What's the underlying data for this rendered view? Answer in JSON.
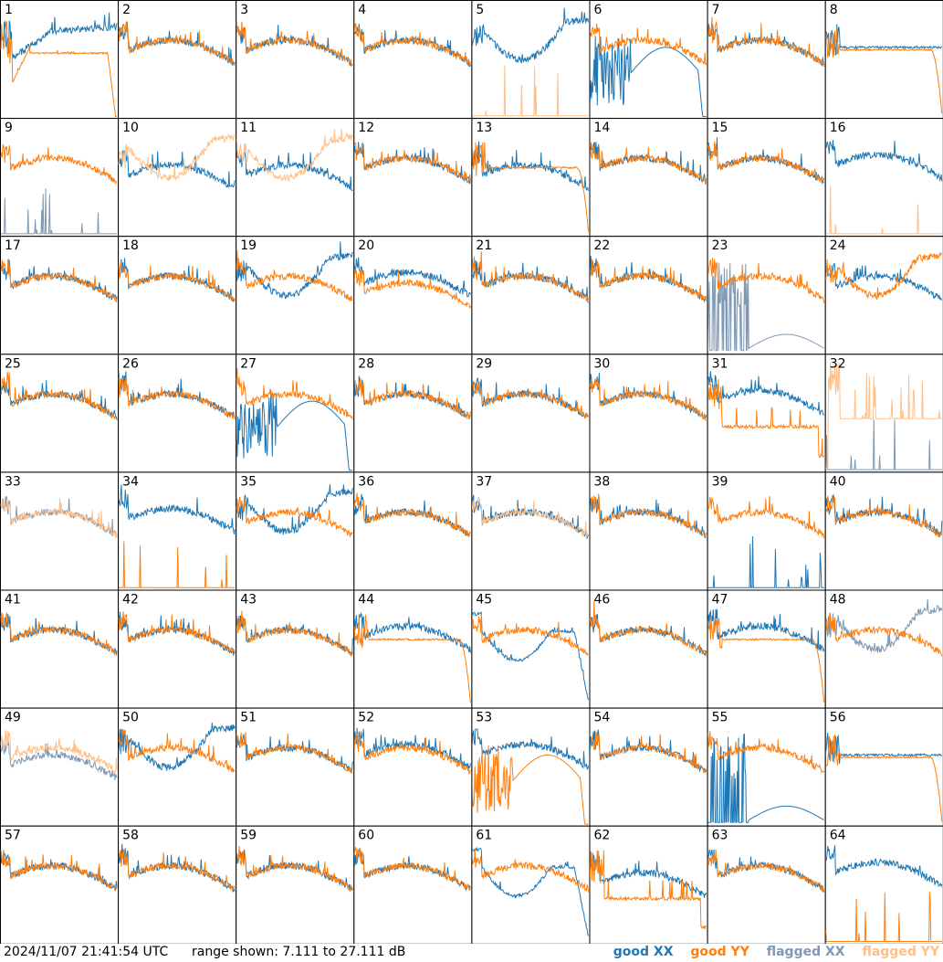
{
  "footer": {
    "timestamp": "2024/11/07 21:41:54 UTC",
    "range": "range shown: 7.111 to 27.111 dB"
  },
  "legend": {
    "good_xx": "good XX",
    "good_yy": "good YY",
    "flagged_xx": "flagged XX",
    "flagged_yy": "flagged YY"
  },
  "colors": {
    "good_xx": "#1f77b4",
    "good_yy": "#ff7f0e",
    "flagged_xx": "#7f99b4",
    "flagged_yy": "#ffbf87",
    "grid": "#000000"
  },
  "chart_data": {
    "type": "line",
    "layout": "8x8 grid of spectra",
    "ylim": [
      7.111,
      27.111
    ],
    "yunit": "dB",
    "panels": [
      {
        "id": "1",
        "xx": "drop-dip",
        "yy": "drop-dip-fall",
        "xx_flag": false,
        "yy_flag": false
      },
      {
        "id": "2",
        "xx": "normal",
        "yy": "normal",
        "xx_flag": false,
        "yy_flag": false
      },
      {
        "id": "3",
        "xx": "normal",
        "yy": "normal",
        "xx_flag": false,
        "yy_flag": false
      },
      {
        "id": "4",
        "xx": "normal",
        "yy": "normal",
        "xx_flag": false,
        "yy_flag": false
      },
      {
        "id": "5",
        "xx": "dip",
        "yy": "spiky-zero",
        "xx_flag": false,
        "yy_flag": true
      },
      {
        "id": "6",
        "xx": "noisy-hump-fall",
        "yy": "normal",
        "xx_flag": false,
        "yy_flag": false
      },
      {
        "id": "7",
        "xx": "normal",
        "yy": "normal",
        "xx_flag": false,
        "yy_flag": false
      },
      {
        "id": "8",
        "xx": "flat",
        "yy": "flat-fall",
        "xx_flag": false,
        "yy_flag": false
      },
      {
        "id": "9",
        "xx": "spiky-zero",
        "yy": "normal",
        "xx_flag": true,
        "yy_flag": false
      },
      {
        "id": "10",
        "xx": "normal-low",
        "yy": "dip",
        "xx_flag": false,
        "yy_flag": true
      },
      {
        "id": "11",
        "xx": "normal-low",
        "yy": "dip",
        "xx_flag": false,
        "yy_flag": true
      },
      {
        "id": "12",
        "xx": "normal",
        "yy": "normal",
        "xx_flag": false,
        "yy_flag": false
      },
      {
        "id": "13",
        "xx": "normal-low",
        "yy": "flat-fall",
        "xx_flag": false,
        "yy_flag": false
      },
      {
        "id": "14",
        "xx": "normal",
        "yy": "normal",
        "xx_flag": false,
        "yy_flag": false
      },
      {
        "id": "15",
        "xx": "normal",
        "yy": "normal",
        "xx_flag": false,
        "yy_flag": false
      },
      {
        "id": "16",
        "xx": "normal-high",
        "yy": "spiky-zero",
        "xx_flag": false,
        "yy_flag": true
      },
      {
        "id": "17",
        "xx": "normal",
        "yy": "normal",
        "xx_flag": false,
        "yy_flag": false
      },
      {
        "id": "18",
        "xx": "normal",
        "yy": "normal",
        "xx_flag": false,
        "yy_flag": false
      },
      {
        "id": "19",
        "xx": "dip",
        "yy": "normal",
        "xx_flag": false,
        "yy_flag": false
      },
      {
        "id": "20",
        "xx": "normal-high",
        "yy": "normal-low",
        "xx_flag": false,
        "yy_flag": false
      },
      {
        "id": "21",
        "xx": "normal",
        "yy": "normal",
        "xx_flag": false,
        "yy_flag": false
      },
      {
        "id": "22",
        "xx": "normal",
        "yy": "normal",
        "xx_flag": false,
        "yy_flag": false
      },
      {
        "id": "23",
        "xx": "spiky-low-hump",
        "yy": "normal",
        "xx_flag": true,
        "yy_flag": false
      },
      {
        "id": "24",
        "xx": "normal",
        "yy": "dip",
        "xx_flag": false,
        "yy_flag": false
      },
      {
        "id": "25",
        "xx": "normal",
        "yy": "normal",
        "xx_flag": false,
        "yy_flag": false
      },
      {
        "id": "26",
        "xx": "normal",
        "yy": "normal",
        "xx_flag": false,
        "yy_flag": false
      },
      {
        "id": "27",
        "xx": "noisy-hump-fall",
        "yy": "normal",
        "xx_flag": false,
        "yy_flag": false
      },
      {
        "id": "28",
        "xx": "normal",
        "yy": "normal",
        "xx_flag": false,
        "yy_flag": false
      },
      {
        "id": "29",
        "xx": "normal",
        "yy": "normal",
        "xx_flag": false,
        "yy_flag": false
      },
      {
        "id": "30",
        "xx": "normal",
        "yy": "normal",
        "xx_flag": false,
        "yy_flag": false
      },
      {
        "id": "31",
        "xx": "normal-high",
        "yy": "flat-low",
        "xx_flag": false,
        "yy_flag": false
      },
      {
        "id": "32",
        "xx": "spiky-zero",
        "yy": "spiky-flagged",
        "xx_flag": true,
        "yy_flag": true
      },
      {
        "id": "33",
        "xx": "normal",
        "yy": "normal",
        "xx_flag": true,
        "yy_flag": true
      },
      {
        "id": "34",
        "xx": "normal-high",
        "yy": "spiky-zero",
        "xx_flag": false,
        "yy_flag": false
      },
      {
        "id": "35",
        "xx": "dip",
        "yy": "normal",
        "xx_flag": false,
        "yy_flag": false
      },
      {
        "id": "36",
        "xx": "normal",
        "yy": "normal",
        "xx_flag": false,
        "yy_flag": false
      },
      {
        "id": "37",
        "xx": "normal",
        "yy": "normal",
        "xx_flag": false,
        "yy_flag": true
      },
      {
        "id": "38",
        "xx": "normal",
        "yy": "normal",
        "xx_flag": false,
        "yy_flag": false
      },
      {
        "id": "39",
        "xx": "spiky-zero",
        "yy": "normal",
        "xx_flag": false,
        "yy_flag": false
      },
      {
        "id": "40",
        "xx": "normal",
        "yy": "normal",
        "xx_flag": false,
        "yy_flag": false
      },
      {
        "id": "41",
        "xx": "normal",
        "yy": "normal",
        "xx_flag": false,
        "yy_flag": false
      },
      {
        "id": "42",
        "xx": "normal",
        "yy": "normal",
        "xx_flag": false,
        "yy_flag": false
      },
      {
        "id": "43",
        "xx": "normal",
        "yy": "normal",
        "xx_flag": false,
        "yy_flag": false
      },
      {
        "id": "44",
        "xx": "normal-high",
        "yy": "flat-fall",
        "xx_flag": false,
        "yy_flag": false
      },
      {
        "id": "45",
        "xx": "dip-fall",
        "yy": "normal",
        "xx_flag": false,
        "yy_flag": false
      },
      {
        "id": "46",
        "xx": "normal",
        "yy": "normal",
        "xx_flag": false,
        "yy_flag": false
      },
      {
        "id": "47",
        "xx": "normal-high",
        "yy": "flat-fall",
        "xx_flag": false,
        "yy_flag": false
      },
      {
        "id": "48",
        "xx": "dip",
        "yy": "normal",
        "xx_flag": true,
        "yy_flag": false
      },
      {
        "id": "49",
        "xx": "normal-low",
        "yy": "normal",
        "xx_flag": true,
        "yy_flag": true
      },
      {
        "id": "50",
        "xx": "dip",
        "yy": "normal",
        "xx_flag": false,
        "yy_flag": false
      },
      {
        "id": "51",
        "xx": "normal",
        "yy": "normal",
        "xx_flag": false,
        "yy_flag": false
      },
      {
        "id": "52",
        "xx": "normal-high",
        "yy": "normal",
        "xx_flag": false,
        "yy_flag": false
      },
      {
        "id": "53",
        "xx": "normal-high",
        "yy": "noisy-hump-fall",
        "xx_flag": false,
        "yy_flag": false
      },
      {
        "id": "54",
        "xx": "normal",
        "yy": "normal",
        "xx_flag": false,
        "yy_flag": false
      },
      {
        "id": "55",
        "xx": "spiky-low-hump",
        "yy": "normal",
        "xx_flag": false,
        "yy_flag": false
      },
      {
        "id": "56",
        "xx": "flat",
        "yy": "flat-fall",
        "xx_flag": false,
        "yy_flag": false
      },
      {
        "id": "57",
        "xx": "normal",
        "yy": "normal",
        "xx_flag": false,
        "yy_flag": false
      },
      {
        "id": "58",
        "xx": "normal",
        "yy": "normal",
        "xx_flag": false,
        "yy_flag": false
      },
      {
        "id": "59",
        "xx": "normal",
        "yy": "normal",
        "xx_flag": false,
        "yy_flag": false
      },
      {
        "id": "60",
        "xx": "normal",
        "yy": "normal",
        "xx_flag": false,
        "yy_flag": false
      },
      {
        "id": "61",
        "xx": "dip-fall",
        "yy": "normal",
        "xx_flag": false,
        "yy_flag": false
      },
      {
        "id": "62",
        "xx": "normal-low",
        "yy": "flat-low",
        "xx_flag": false,
        "yy_flag": false
      },
      {
        "id": "63",
        "xx": "normal",
        "yy": "normal",
        "xx_flag": false,
        "yy_flag": false
      },
      {
        "id": "64",
        "xx": "normal-high",
        "yy": "spiky-zero",
        "xx_flag": false,
        "yy_flag": false
      }
    ]
  }
}
